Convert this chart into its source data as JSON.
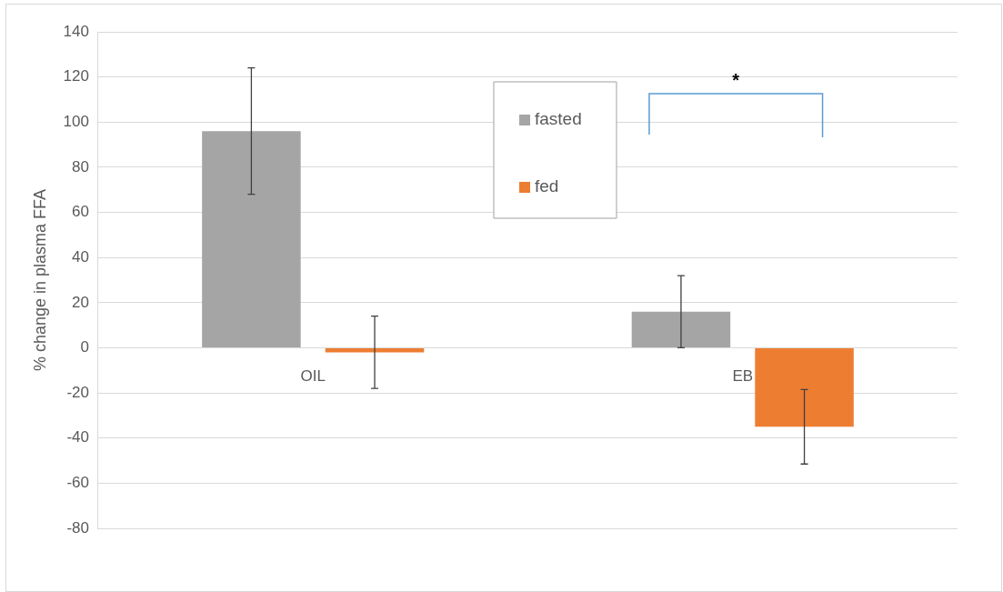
{
  "chart_data": {
    "type": "bar",
    "ylabel": "% change in plasma FFA",
    "categories": [
      "OIL",
      "EB"
    ],
    "series": [
      {
        "name": "fasted",
        "color": "#a5a5a5",
        "values": [
          96,
          16
        ],
        "errors": [
          28,
          16
        ]
      },
      {
        "name": "fed",
        "color": "#ed7d31",
        "values": [
          -2,
          -35
        ],
        "errors": [
          16,
          16.5
        ]
      }
    ],
    "ylim": [
      -80,
      140
    ],
    "yticks": [
      -80,
      -60,
      -40,
      -20,
      0,
      20,
      40,
      60,
      80,
      100,
      120,
      140
    ],
    "grid": "y",
    "legend": "top",
    "annotations": [
      "*"
    ]
  }
}
